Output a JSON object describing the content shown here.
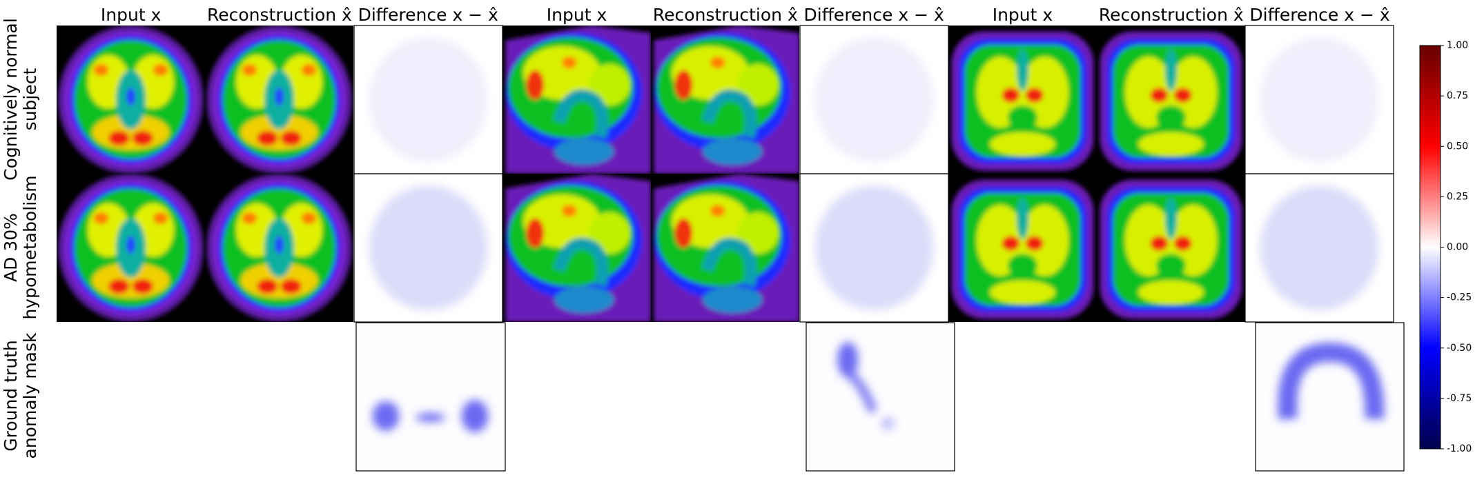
{
  "column_titles": [
    "Input x",
    "Reconstruction x̂",
    "Difference x − x̂",
    "Input x",
    "Reconstruction x̂",
    "Difference x − x̂",
    "Input x",
    "Reconstruction x̂",
    "Difference x − x̂"
  ],
  "row_labels": [
    [
      "Cognitively normal",
      "subject"
    ],
    [
      "AD 30%",
      "hypometabolism"
    ],
    [
      "Ground truth",
      "anomaly mask"
    ]
  ],
  "colorbar": {
    "ylim": [
      -1,
      1
    ],
    "ticks": [
      {
        "value": 1,
        "label": "1.00"
      },
      {
        "value": 0.75,
        "label": "0.75"
      },
      {
        "value": 0.5,
        "label": "0.50"
      },
      {
        "value": 0.25,
        "label": "0.25"
      },
      {
        "value": 0,
        "label": "0.00"
      },
      {
        "value": -0.25,
        "label": "-0.25"
      },
      {
        "value": -0.5,
        "label": "-0.50"
      },
      {
        "value": -0.75,
        "label": "-0.75"
      },
      {
        "value": -1,
        "label": "-1.00"
      }
    ]
  }
}
